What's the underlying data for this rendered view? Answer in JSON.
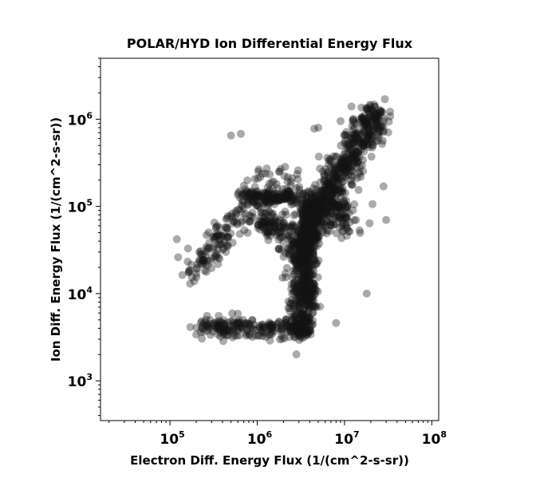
{
  "chart_data": {
    "type": "scatter",
    "title": "POLAR/HYD  Ion Differential Energy Flux",
    "xlabel": "Electron Diff. Energy Flux (1/(cm^2-s-sr))",
    "ylabel": "Ion Diff. Energy Flux (1/(cm^2-s-sr))",
    "xscale": "log",
    "yscale": "log",
    "xlim": [
      16000,
      120000000
    ],
    "ylim": [
      350,
      5000000
    ],
    "grid": false,
    "marker_color": "#000000",
    "marker_alpha": 0.35,
    "x_ticks": [
      {
        "base": "10",
        "exp": "5",
        "value": 100000
      },
      {
        "base": "10",
        "exp": "6",
        "value": 1000000
      },
      {
        "base": "10",
        "exp": "7",
        "value": 10000000
      },
      {
        "base": "10",
        "exp": "8",
        "value": 100000000
      }
    ],
    "y_ticks": [
      {
        "base": "10",
        "exp": "3",
        "value": 1000
      },
      {
        "base": "10",
        "exp": "4",
        "value": 10000
      },
      {
        "base": "10",
        "exp": "5",
        "value": 100000
      },
      {
        "base": "10",
        "exp": "6",
        "value": 1000000
      }
    ],
    "clusters": [
      {
        "note": "main diagonal band",
        "from": [
          2500000,
          25000
        ],
        "to": [
          23000000,
          1200000
        ],
        "n": 700,
        "spread": 0.09
      },
      {
        "note": "dense vertical column",
        "from": [
          3200000,
          3500
        ],
        "to": [
          4000000,
          120000
        ],
        "n": 650,
        "spread": 0.07
      },
      {
        "note": "low flat band",
        "from": [
          220000,
          4200
        ],
        "to": [
          3500000,
          4000
        ],
        "n": 220,
        "spread": 0.06
      },
      {
        "note": "left upward arm",
        "from": [
          180000,
          18000
        ],
        "to": [
          700000,
          90000
        ],
        "n": 130,
        "spread": 0.08
      },
      {
        "note": "mid horizontal band",
        "from": [
          700000,
          125000
        ],
        "to": [
          2800000,
          130000
        ],
        "n": 180,
        "spread": 0.05
      },
      {
        "note": "cluster below mid band",
        "from": [
          1000000,
          70000
        ],
        "to": [
          2200000,
          55000
        ],
        "n": 110,
        "spread": 0.08
      },
      {
        "note": "right cluster",
        "from": [
          5000000,
          130000
        ],
        "to": [
          12000000,
          60000
        ],
        "n": 130,
        "spread": 0.1
      },
      {
        "note": "upper scatter",
        "from": [
          1000000,
          230000
        ],
        "to": [
          3000000,
          210000
        ],
        "n": 28,
        "spread": 0.06
      }
    ],
    "points": [
      [
        120000,
        42000
      ],
      [
        500000,
        650000
      ],
      [
        650000,
        680000
      ],
      [
        18000000,
        10000
      ],
      [
        30000000,
        70000
      ],
      [
        28000000,
        170000
      ],
      [
        29000000,
        1700000
      ],
      [
        1400000,
        2900
      ],
      [
        5000000,
        800000
      ],
      [
        4500000,
        780000
      ],
      [
        12000000,
        1400000
      ],
      [
        9000000,
        950000
      ],
      [
        170000,
        13000
      ],
      [
        200000,
        3400
      ],
      [
        1900000,
        3300
      ],
      [
        8000000,
        4600
      ]
    ]
  }
}
